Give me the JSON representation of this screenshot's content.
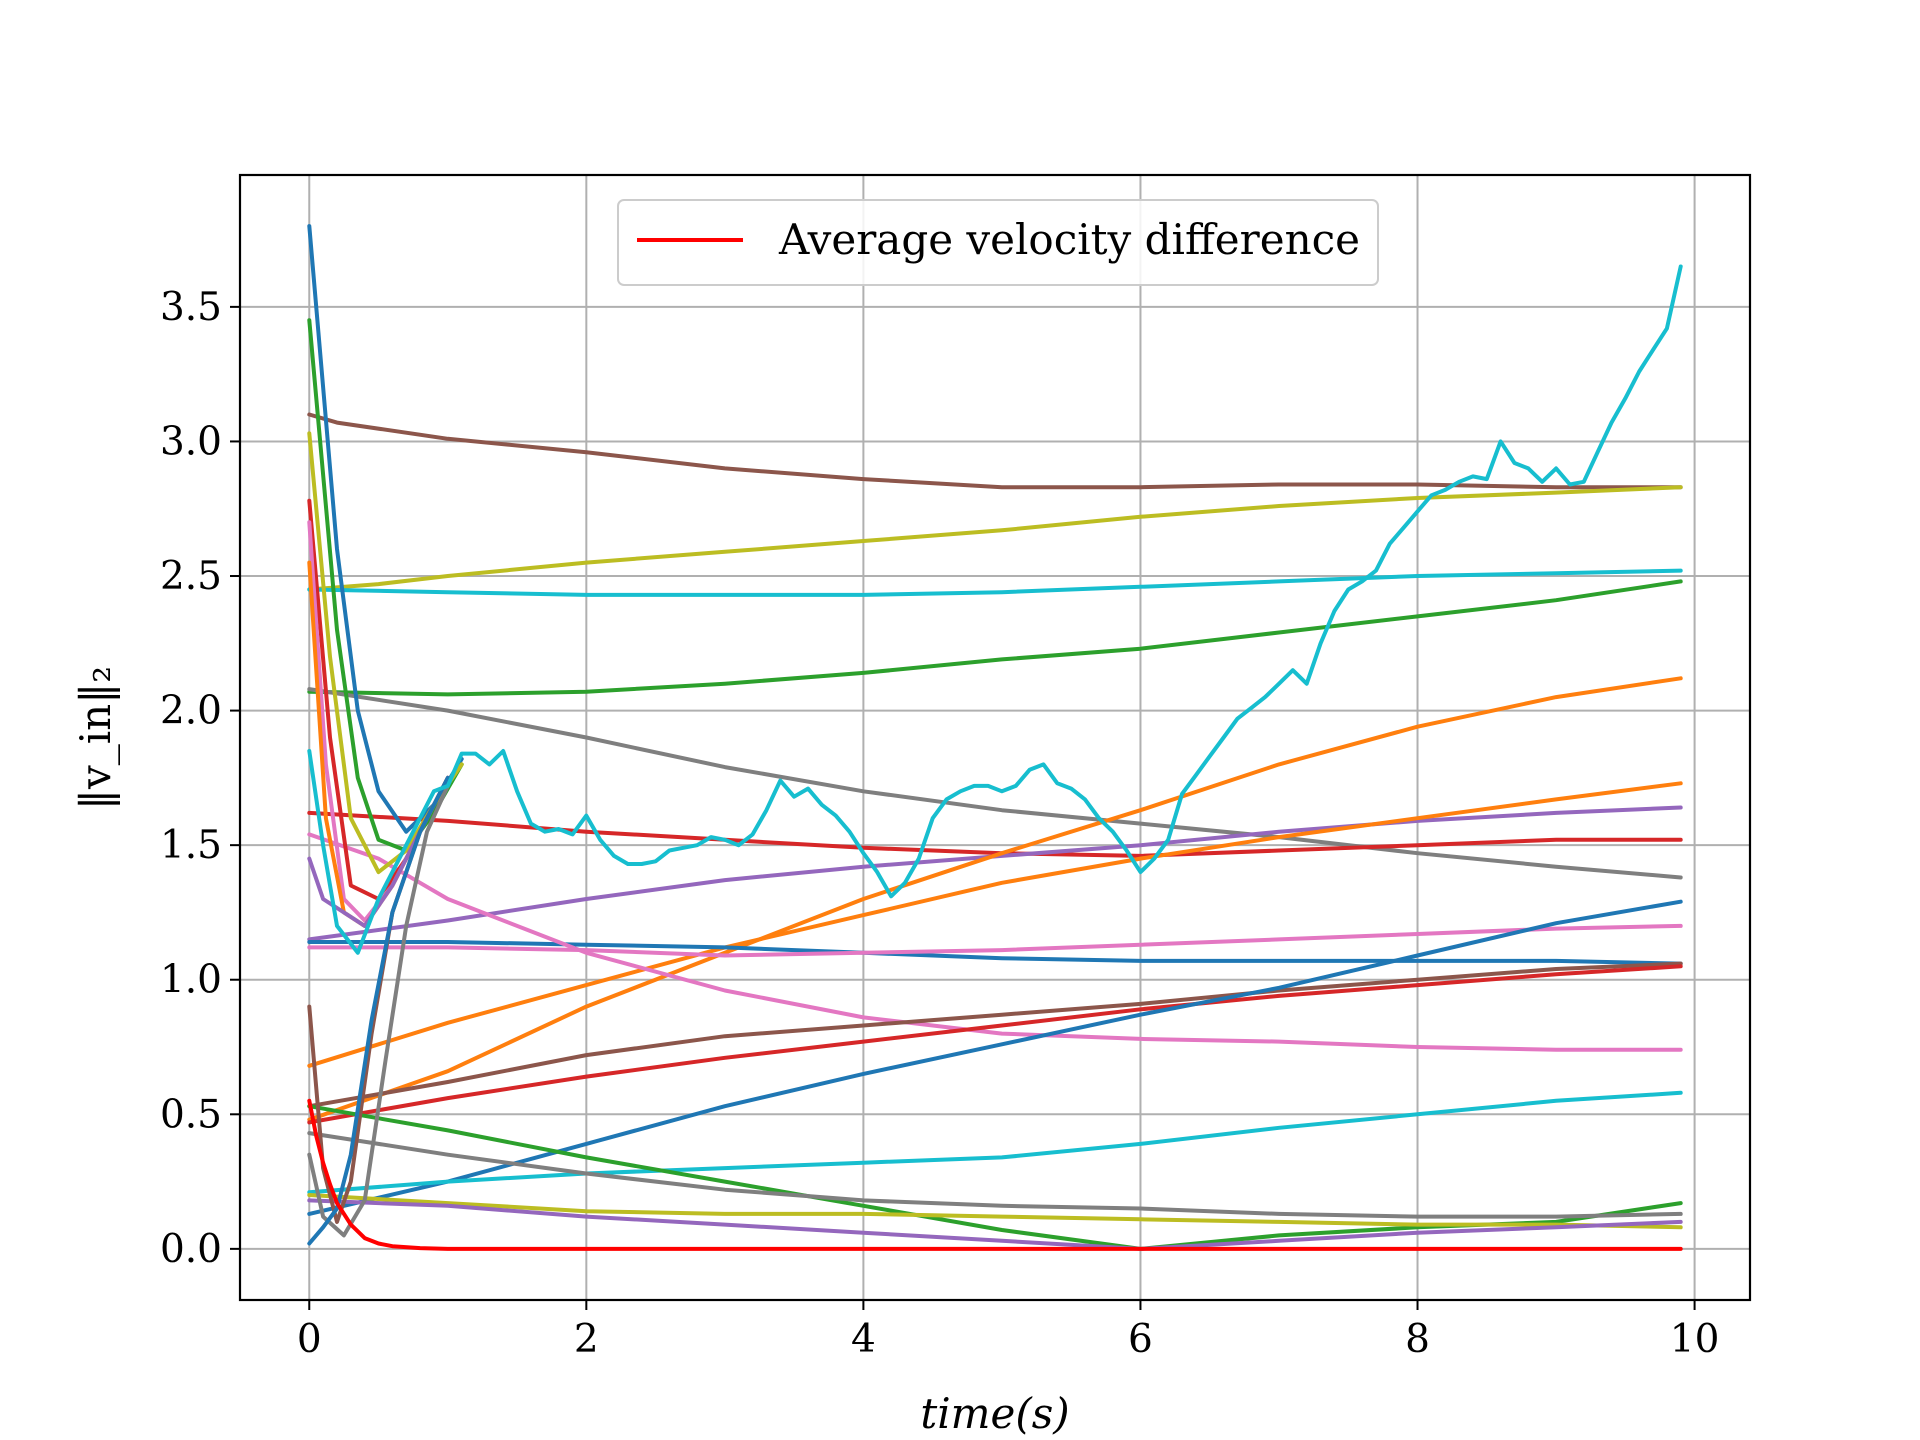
{
  "chart_data": {
    "type": "line",
    "xlabel": "time(s)",
    "ylabel": "‖v_in‖₂",
    "xlim": [
      -0.5,
      10.4
    ],
    "ylim": [
      -0.19,
      3.99
    ],
    "xticks": [
      0,
      2,
      4,
      6,
      8,
      10
    ],
    "yticks": [
      0.0,
      0.5,
      1.0,
      1.5,
      2.0,
      2.5,
      3.0,
      3.5
    ],
    "xtick_labels": [
      "0",
      "2",
      "4",
      "6",
      "8",
      "10"
    ],
    "ytick_labels": [
      "0.0",
      "0.5",
      "1.0",
      "1.5",
      "2.0",
      "2.5",
      "3.0",
      "3.5"
    ],
    "grid": true,
    "legend": {
      "position": "top-center",
      "entries": [
        "Average velocity difference"
      ]
    },
    "series": [
      {
        "color": "#8c564b",
        "x": [
          0,
          0.2,
          1,
          2,
          3,
          4,
          5,
          6,
          7,
          8,
          9,
          9.9
        ],
        "y": [
          3.1,
          3.07,
          3.01,
          2.96,
          2.9,
          2.86,
          2.83,
          2.83,
          2.84,
          2.84,
          2.83,
          2.83
        ]
      },
      {
        "color": "#bcbd22",
        "x": [
          0,
          0.5,
          1,
          2,
          3,
          4,
          5,
          6,
          7,
          8,
          9,
          9.9
        ],
        "y": [
          2.45,
          2.47,
          2.5,
          2.55,
          2.59,
          2.63,
          2.67,
          2.72,
          2.76,
          2.79,
          2.81,
          2.83
        ]
      },
      {
        "color": "#17becf",
        "x": [
          0,
          1,
          2,
          3,
          4,
          5,
          6,
          7,
          8,
          9,
          9.9
        ],
        "y": [
          2.45,
          2.44,
          2.43,
          2.43,
          2.43,
          2.44,
          2.46,
          2.48,
          2.5,
          2.51,
          2.52
        ]
      },
      {
        "color": "#2ca02c",
        "x": [
          0,
          1,
          2,
          3,
          4,
          5,
          6,
          7,
          8,
          9,
          9.9
        ],
        "y": [
          2.07,
          2.06,
          2.07,
          2.1,
          2.14,
          2.19,
          2.23,
          2.29,
          2.35,
          2.41,
          2.48
        ]
      },
      {
        "color": "#7f7f7f",
        "x": [
          0,
          1,
          2,
          3,
          4,
          5,
          6,
          7,
          8,
          9,
          9.9
        ],
        "y": [
          2.08,
          2.0,
          1.9,
          1.79,
          1.7,
          1.63,
          1.58,
          1.53,
          1.47,
          1.42,
          1.38
        ]
      },
      {
        "color": "#d62728",
        "x": [
          0,
          1,
          2,
          3,
          4,
          5,
          6,
          7,
          8,
          9,
          9.9
        ],
        "y": [
          1.62,
          1.59,
          1.55,
          1.52,
          1.49,
          1.47,
          1.46,
          1.48,
          1.5,
          1.52,
          1.52
        ]
      },
      {
        "color": "#9467bd",
        "x": [
          0,
          1,
          2,
          3,
          4,
          5,
          6,
          7,
          8,
          9,
          9.9
        ],
        "y": [
          1.15,
          1.22,
          1.3,
          1.37,
          1.42,
          1.46,
          1.5,
          1.55,
          1.59,
          1.62,
          1.64
        ]
      },
      {
        "color": "#ff7f0e",
        "x": [
          0,
          1,
          2,
          3,
          4,
          5,
          6,
          7,
          8,
          9,
          9.9
        ],
        "y": [
          0.68,
          0.84,
          0.98,
          1.12,
          1.24,
          1.36,
          1.45,
          1.53,
          1.6,
          1.67,
          1.73
        ]
      },
      {
        "color": "#ff7f0e",
        "x": [
          0,
          1,
          2,
          3,
          4,
          5,
          6,
          7,
          8,
          9,
          9.9
        ],
        "y": [
          0.48,
          0.66,
          0.9,
          1.1,
          1.3,
          1.47,
          1.63,
          1.8,
          1.94,
          2.05,
          2.12
        ]
      },
      {
        "color": "#1f77b4",
        "x": [
          0,
          1,
          2,
          3,
          4,
          5,
          6,
          7,
          8,
          9,
          9.9
        ],
        "y": [
          1.14,
          1.14,
          1.13,
          1.12,
          1.1,
          1.08,
          1.07,
          1.07,
          1.07,
          1.07,
          1.06
        ]
      },
      {
        "color": "#e377c2",
        "x": [
          0,
          1,
          2,
          3,
          4,
          5,
          6,
          7,
          8,
          9,
          9.9
        ],
        "y": [
          1.12,
          1.12,
          1.11,
          1.09,
          1.1,
          1.11,
          1.13,
          1.15,
          1.17,
          1.19,
          1.2
        ]
      },
      {
        "color": "#e377c2",
        "x": [
          0,
          0.5,
          1,
          2,
          3,
          4,
          5,
          6,
          7,
          8,
          9,
          9.9
        ],
        "y": [
          1.54,
          1.45,
          1.3,
          1.1,
          0.96,
          0.86,
          0.8,
          0.78,
          0.77,
          0.75,
          0.74,
          0.74
        ]
      },
      {
        "color": "#8c564b",
        "x": [
          0,
          1,
          2,
          3,
          4,
          5,
          6,
          7,
          8,
          9,
          9.9
        ],
        "y": [
          0.53,
          0.62,
          0.72,
          0.79,
          0.83,
          0.87,
          0.91,
          0.96,
          1.0,
          1.04,
          1.06
        ]
      },
      {
        "color": "#d62728",
        "x": [
          0,
          1,
          2,
          3,
          4,
          5,
          6,
          7,
          8,
          9,
          9.9
        ],
        "y": [
          0.47,
          0.56,
          0.64,
          0.71,
          0.77,
          0.83,
          0.89,
          0.94,
          0.98,
          1.02,
          1.05
        ]
      },
      {
        "color": "#1f77b4",
        "x": [
          0,
          1,
          2,
          3,
          4,
          5,
          6,
          7,
          8,
          9,
          9.9
        ],
        "y": [
          0.13,
          0.25,
          0.39,
          0.53,
          0.65,
          0.76,
          0.87,
          0.97,
          1.09,
          1.21,
          1.29
        ]
      },
      {
        "color": "#17becf",
        "x": [
          0,
          1,
          2,
          3,
          4,
          5,
          6,
          7,
          8,
          9,
          9.9
        ],
        "y": [
          0.21,
          0.25,
          0.28,
          0.3,
          0.32,
          0.34,
          0.39,
          0.45,
          0.5,
          0.55,
          0.58
        ]
      },
      {
        "color": "#2ca02c",
        "x": [
          0,
          1,
          2,
          3,
          4,
          5,
          6,
          7,
          8,
          9,
          9.9
        ],
        "y": [
          0.53,
          0.44,
          0.34,
          0.25,
          0.16,
          0.07,
          0.0,
          0.05,
          0.08,
          0.1,
          0.17
        ]
      },
      {
        "color": "#7f7f7f",
        "x": [
          0,
          1,
          2,
          3,
          4,
          5,
          6,
          7,
          8,
          9,
          9.9
        ],
        "y": [
          0.43,
          0.35,
          0.28,
          0.22,
          0.18,
          0.16,
          0.15,
          0.13,
          0.12,
          0.12,
          0.13
        ]
      },
      {
        "color": "#bcbd22",
        "x": [
          0,
          1,
          2,
          3,
          4,
          5,
          6,
          7,
          8,
          9,
          9.9
        ],
        "y": [
          0.2,
          0.17,
          0.14,
          0.13,
          0.13,
          0.12,
          0.11,
          0.1,
          0.09,
          0.09,
          0.08
        ]
      },
      {
        "color": "#9467bd",
        "x": [
          0,
          1,
          2,
          3,
          4,
          5,
          6,
          7,
          8,
          9,
          9.9
        ],
        "y": [
          0.18,
          0.16,
          0.12,
          0.09,
          0.06,
          0.03,
          0.0,
          0.03,
          0.06,
          0.08,
          0.1
        ]
      },
      {
        "color": "#1f77b4",
        "x": [
          0,
          0.2,
          0.35,
          0.5,
          0.7,
          0.9,
          1.1
        ],
        "y": [
          3.8,
          2.6,
          2.0,
          1.7,
          1.55,
          1.65,
          1.82
        ]
      },
      {
        "color": "#2ca02c",
        "x": [
          0,
          0.2,
          0.35,
          0.5,
          0.7,
          0.9,
          1.1
        ],
        "y": [
          3.45,
          2.3,
          1.75,
          1.52,
          1.48,
          1.62,
          1.8
        ]
      },
      {
        "color": "#bcbd22",
        "x": [
          0,
          0.15,
          0.3,
          0.5,
          0.7,
          0.9,
          1.1
        ],
        "y": [
          3.03,
          2.2,
          1.6,
          1.4,
          1.48,
          1.65,
          1.8
        ]
      },
      {
        "color": "#d62728",
        "x": [
          0,
          0.15,
          0.3,
          0.5,
          0.7,
          0.9
        ],
        "y": [
          2.78,
          1.9,
          1.35,
          1.3,
          1.45,
          1.65
        ]
      },
      {
        "color": "#e377c2",
        "x": [
          0,
          0.12,
          0.25,
          0.4,
          0.6,
          0.8,
          1.0
        ],
        "y": [
          2.7,
          1.8,
          1.3,
          1.22,
          1.35,
          1.55,
          1.75
        ]
      },
      {
        "color": "#ff7f0e",
        "x": [
          0,
          0.12,
          0.25,
          0.4,
          0.6,
          0.8,
          1.0
        ],
        "y": [
          2.55,
          1.6,
          1.25,
          1.2,
          1.35,
          1.55,
          1.75
        ]
      },
      {
        "color": "#9467bd",
        "x": [
          0,
          0.1,
          0.25,
          0.4,
          0.6,
          0.8,
          1.0
        ],
        "y": [
          1.45,
          1.3,
          1.25,
          1.2,
          1.35,
          1.55,
          1.75
        ]
      },
      {
        "color": "#7f7f7f",
        "x": [
          0,
          0.1,
          0.25,
          0.4,
          0.55,
          0.7,
          0.85,
          1.0
        ],
        "y": [
          0.35,
          0.12,
          0.05,
          0.18,
          0.7,
          1.2,
          1.55,
          1.72
        ]
      },
      {
        "color": "#8c564b",
        "x": [
          0,
          0.1,
          0.2,
          0.3,
          0.45,
          0.6,
          0.8,
          1.0
        ],
        "y": [
          0.9,
          0.3,
          0.1,
          0.25,
          0.8,
          1.25,
          1.55,
          1.75
        ]
      },
      {
        "color": "#1f77b4",
        "x": [
          0,
          0.1,
          0.2,
          0.3,
          0.45,
          0.6,
          0.8,
          1.0
        ],
        "y": [
          0.02,
          0.08,
          0.15,
          0.35,
          0.85,
          1.25,
          1.55,
          1.75
        ]
      },
      {
        "color": "#17becf",
        "x": [
          0,
          0.1,
          0.2,
          0.35,
          0.5,
          0.65,
          0.8,
          0.9,
          1.0,
          1.1,
          1.2,
          1.3,
          1.4,
          1.5,
          1.6,
          1.7,
          1.8,
          1.9,
          2.0,
          2.1,
          2.2,
          2.3,
          2.4,
          2.5,
          2.6,
          2.7,
          2.8,
          2.9,
          3.0,
          3.1,
          3.2,
          3.3,
          3.4,
          3.5,
          3.6,
          3.7,
          3.8,
          3.9,
          4.0,
          4.1,
          4.2,
          4.3,
          4.4,
          4.5,
          4.6,
          4.7,
          4.8,
          4.9,
          5.0,
          5.1,
          5.2,
          5.3,
          5.4,
          5.5,
          5.6,
          5.7,
          5.8,
          5.9,
          6.0,
          6.1,
          6.2,
          6.3,
          6.4,
          6.5,
          6.6,
          6.7,
          6.8,
          6.9,
          7.0,
          7.1,
          7.2,
          7.3,
          7.4,
          7.5,
          7.6,
          7.7,
          7.8,
          7.9,
          8.0,
          8.1,
          8.2,
          8.3,
          8.4,
          8.5,
          8.6,
          8.7,
          8.8,
          8.9,
          9.0,
          9.1,
          9.2,
          9.3,
          9.4,
          9.5,
          9.6,
          9.7,
          9.8,
          9.9
        ],
        "y": [
          1.85,
          1.5,
          1.2,
          1.1,
          1.3,
          1.45,
          1.6,
          1.7,
          1.72,
          1.84,
          1.84,
          1.8,
          1.85,
          1.7,
          1.58,
          1.55,
          1.56,
          1.54,
          1.61,
          1.52,
          1.46,
          1.43,
          1.43,
          1.44,
          1.48,
          1.49,
          1.5,
          1.53,
          1.52,
          1.5,
          1.54,
          1.63,
          1.74,
          1.68,
          1.71,
          1.65,
          1.61,
          1.55,
          1.47,
          1.4,
          1.31,
          1.36,
          1.45,
          1.6,
          1.67,
          1.7,
          1.72,
          1.72,
          1.7,
          1.72,
          1.78,
          1.8,
          1.73,
          1.71,
          1.67,
          1.6,
          1.55,
          1.48,
          1.4,
          1.45,
          1.52,
          1.69,
          1.76,
          1.83,
          1.9,
          1.97,
          2.01,
          2.05,
          2.1,
          2.15,
          2.1,
          2.25,
          2.37,
          2.45,
          2.48,
          2.52,
          2.62,
          2.68,
          2.74,
          2.8,
          2.82,
          2.85,
          2.87,
          2.86,
          3.0,
          2.92,
          2.9,
          2.85,
          2.9,
          2.84,
          2.85,
          2.96,
          3.07,
          3.16,
          3.26,
          3.34,
          3.42,
          3.65
        ]
      },
      {
        "name": "Average velocity difference",
        "color": "#ff0000",
        "x": [
          0,
          0.05,
          0.1,
          0.15,
          0.2,
          0.3,
          0.4,
          0.5,
          0.6,
          0.8,
          1.0,
          2,
          4,
          6,
          8,
          9.9
        ],
        "y": [
          0.55,
          0.42,
          0.32,
          0.24,
          0.17,
          0.09,
          0.04,
          0.02,
          0.01,
          0.003,
          0.0,
          0.0,
          0.0,
          0.0,
          0.0,
          0.0
        ]
      }
    ]
  }
}
